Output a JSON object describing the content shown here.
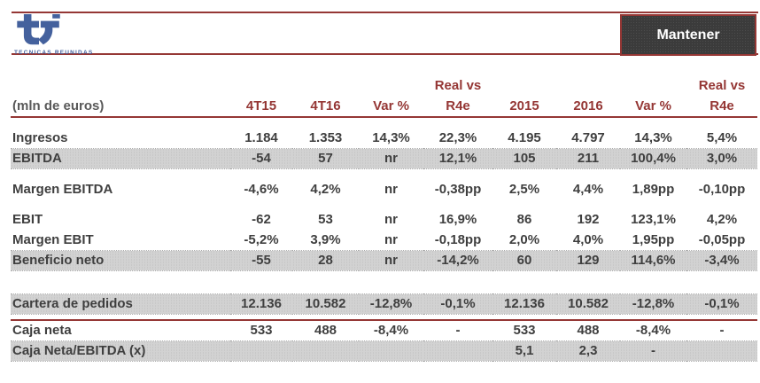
{
  "header": {
    "company": "TECNICAS REUNIDAS",
    "rating": "Mantener"
  },
  "colors": {
    "accent_red": "#953735",
    "header_text_red": "#953735",
    "unit_label_gray": "#595959",
    "body_text": "#3f3f3f",
    "shaded_row": "#d2d2d2",
    "rating_bg": "#3b3b3b",
    "rating_text": "#ffffff",
    "logo_blue": "#44619d"
  },
  "table": {
    "header_top": [
      "",
      "",
      "",
      "",
      "Real vs",
      "",
      "",
      "",
      "Real vs"
    ],
    "header_cols": [
      "(mln de euros)",
      "4T15",
      "4T16",
      "Var %",
      "R4e",
      "2015",
      "2016",
      "Var %",
      "R4e"
    ],
    "rows": [
      {
        "label": "Ingresos",
        "values": [
          "1.184",
          "1.353",
          "14,3%",
          "22,3%",
          "4.195",
          "4.797",
          "14,3%",
          "5,4%"
        ],
        "shaded": false,
        "gap_before": 12
      },
      {
        "label": "EBITDA",
        "values": [
          "-54",
          "57",
          "nr",
          "12,1%",
          "105",
          "211",
          "100,4%",
          "3,0%"
        ],
        "shaded": true
      },
      {
        "label": "Margen EBITDA",
        "values": [
          "-4,6%",
          "4,2%",
          "nr",
          "-0,38pp",
          "2,5%",
          "4,4%",
          "1,89pp",
          "-0,10pp"
        ],
        "shaded": false,
        "gap_before": 12
      },
      {
        "label": "EBIT",
        "values": [
          "-62",
          "53",
          "nr",
          "16,9%",
          "86",
          "192",
          "123,1%",
          "4,2%"
        ],
        "shaded": false,
        "gap_before": 11
      },
      {
        "label": "Margen EBIT",
        "values": [
          "-5,2%",
          "3,9%",
          "nr",
          "-0,18pp",
          "2,0%",
          "4,0%",
          "1,95pp",
          "-0,05pp"
        ],
        "shaded": false
      },
      {
        "label": "Beneficio neto",
        "values": [
          "-55",
          "28",
          "nr",
          "-14,2%",
          "60",
          "129",
          "114,6%",
          "-3,4%"
        ],
        "shaded": true
      },
      {
        "label": "Cartera de pedidos",
        "values": [
          "12.136",
          "10.582",
          "-12,8%",
          "-0,1%",
          "12.136",
          "10.582",
          "-12,8%",
          "-0,1%"
        ],
        "shaded": true,
        "gap_before": 26
      },
      {
        "label": "Caja neta",
        "values": [
          "533",
          "488",
          "-8,4%",
          "-",
          "533",
          "488",
          "-8,4%",
          "-"
        ],
        "shaded": false,
        "gap_before": 7,
        "red_line_above": true
      },
      {
        "label": "Caja Neta/EBITDA (x)",
        "values": [
          "",
          "",
          "",
          "",
          "5,1",
          "2,3",
          "-",
          ""
        ],
        "shaded": true
      }
    ]
  }
}
